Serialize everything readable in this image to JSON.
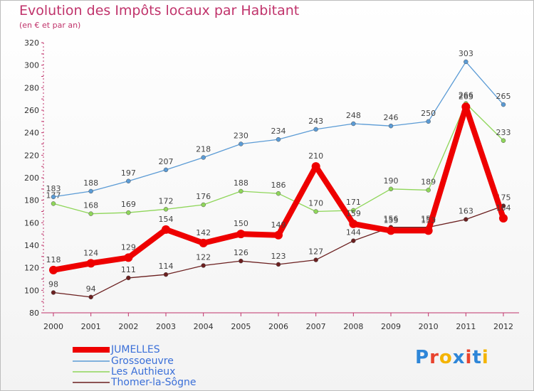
{
  "title": "Evolution des Impôts locaux par Habitant",
  "subtitle": "(en € et par an)",
  "logo": {
    "text": "Proxiti",
    "letter_colors": [
      "#2e86d8",
      "#e8432e",
      "#f4b400",
      "#2e86d8",
      "#e8432e",
      "#2e86d8",
      "#f4b400"
    ]
  },
  "chart_data": {
    "type": "line",
    "title": "Evolution des Impôts locaux par Habitant",
    "subtitle": "(en € et par an)",
    "xlabel": "",
    "ylabel": "",
    "x": [
      "2000",
      "2001",
      "2002",
      "2003",
      "2004",
      "2005",
      "2006",
      "2007",
      "2008",
      "2009",
      "2010",
      "2011",
      "2012"
    ],
    "ylim": [
      80,
      320
    ],
    "yticks": [
      "80",
      "100",
      "120",
      "140",
      "160",
      "180",
      "200",
      "220",
      "240",
      "260",
      "280",
      "300",
      "320"
    ],
    "grid": false,
    "legend_position": "bottom-left",
    "series": [
      {
        "name": "Thomer-la-Sôgne",
        "color": "#6b1f1f",
        "values": [
          98,
          94,
          111,
          114,
          122,
          126,
          123,
          127,
          144,
          156,
          156,
          163,
          175
        ],
        "labels": [
          "98",
          "94",
          "111",
          "114",
          "122",
          "126",
          "123",
          "127",
          "144",
          "156",
          "156",
          "163",
          "175"
        ]
      },
      {
        "name": "Les Authieux",
        "color": "#8fd65a",
        "values": [
          177,
          168,
          169,
          172,
          176,
          188,
          186,
          170,
          171,
          190,
          189,
          266,
          233
        ],
        "labels": [
          "177",
          "168",
          "169",
          "172",
          "176",
          "188",
          "186",
          "170",
          "171",
          "190",
          "189",
          "266",
          "233"
        ]
      },
      {
        "name": "Grossoeuvre",
        "color": "#5b9bd5",
        "values": [
          183,
          188,
          197,
          207,
          218,
          230,
          234,
          243,
          248,
          246,
          250,
          303,
          265
        ],
        "labels": [
          "183",
          "188",
          "197",
          "207",
          "218",
          "230",
          "234",
          "243",
          "248",
          "246",
          "250",
          "303",
          "265"
        ]
      },
      {
        "name": "JUMELLES",
        "color": "#ee0000",
        "values": [
          118,
          124,
          129,
          154,
          142,
          150,
          149,
          210,
          159,
          153,
          153,
          263,
          164
        ],
        "labels": [
          "118",
          "124",
          "129",
          "154",
          "142",
          "150",
          "149",
          "210",
          "159",
          "153",
          "153",
          "263",
          "164"
        ]
      }
    ],
    "legend": [
      {
        "name": "JUMELLES",
        "color": "#ee0000"
      },
      {
        "name": "Grossoeuvre",
        "color": "#5b9bd5"
      },
      {
        "name": "Les Authieux",
        "color": "#8fd65a"
      },
      {
        "name": "Thomer-la-Sôgne",
        "color": "#6b1f1f"
      }
    ]
  }
}
